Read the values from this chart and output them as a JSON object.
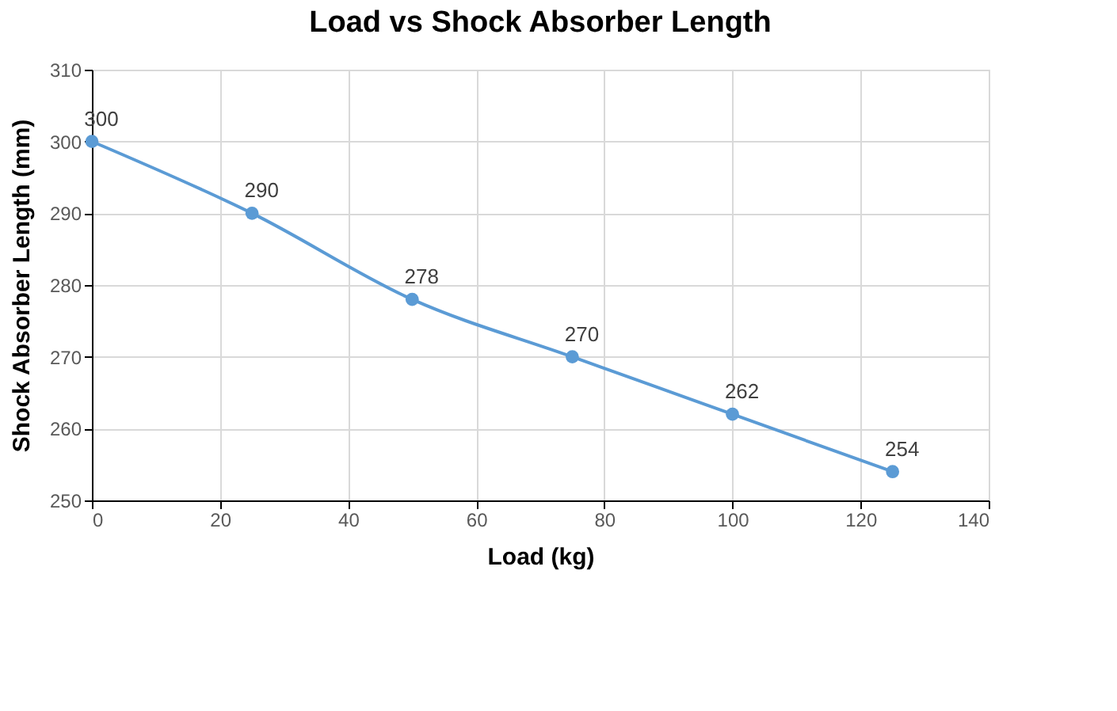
{
  "chart_data": {
    "type": "line",
    "title": "Load vs Shock Absorber Length",
    "xlabel": "Load (kg)",
    "ylabel": "Shock Absorber Length (mm)",
    "x": [
      0,
      25,
      50,
      75,
      100,
      125
    ],
    "series": [
      {
        "color": "#5b9bd5",
        "values": [
          300,
          290,
          278,
          270,
          262,
          254
        ]
      }
    ],
    "xlim": [
      0,
      140
    ],
    "xticks": [
      0,
      20,
      40,
      60,
      80,
      100,
      120,
      140
    ],
    "ylim": [
      250,
      310
    ],
    "yticks": [
      250,
      260,
      270,
      280,
      290,
      300,
      310
    ],
    "grid": true,
    "marker": "circle",
    "line_style": "solid",
    "data_labels": true
  }
}
